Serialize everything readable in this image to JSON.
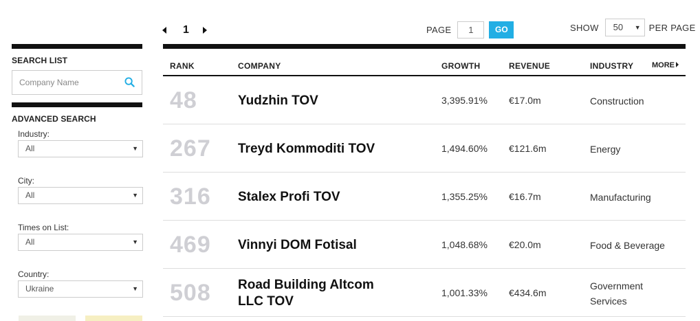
{
  "pager": {
    "current_page": "1",
    "page_label": "PAGE",
    "page_input_value": "1",
    "go_label": "GO",
    "show_label": "SHOW",
    "per_page_value": "50",
    "per_page_label": "PER PAGE"
  },
  "sidebar": {
    "search_heading": "SEARCH LIST",
    "search_placeholder": "Company Name",
    "advanced_heading": "ADVANCED SEARCH",
    "filters": [
      {
        "label": "Industry:",
        "value": "All"
      },
      {
        "label": "City:",
        "value": "All"
      },
      {
        "label": "Times on List:",
        "value": "All"
      },
      {
        "label": "Country:",
        "value": "Ukraine"
      }
    ]
  },
  "table": {
    "headers": {
      "rank": "RANK",
      "company": "COMPANY",
      "growth": "GROWTH",
      "revenue": "REVENUE",
      "industry": "INDUSTRY",
      "more": "MORE"
    },
    "rows": [
      {
        "rank": "48",
        "company": "Yudzhin TOV",
        "growth": "3,395.91%",
        "revenue": "€17.0m",
        "industry": "Construction"
      },
      {
        "rank": "267",
        "company": "Treyd Kommoditi TOV",
        "growth": "1,494.60%",
        "revenue": "€121.6m",
        "industry": "Energy"
      },
      {
        "rank": "316",
        "company": "Stalex Profi TOV",
        "growth": "1,355.25%",
        "revenue": "€16.7m",
        "industry": "Manufacturing"
      },
      {
        "rank": "469",
        "company": "Vinnyi DOM Fotisal",
        "growth": "1,048.68%",
        "revenue": "€20.0m",
        "industry": "Food & Beverage"
      },
      {
        "rank": "508",
        "company": "Road Building Altcom LLC TOV",
        "growth": "1,001.33%",
        "revenue": "€434.6m",
        "industry": "Government Services"
      }
    ]
  },
  "colors": {
    "accent": "#22aee4",
    "rule": "#111111",
    "rank_text": "#cfcfd4"
  }
}
